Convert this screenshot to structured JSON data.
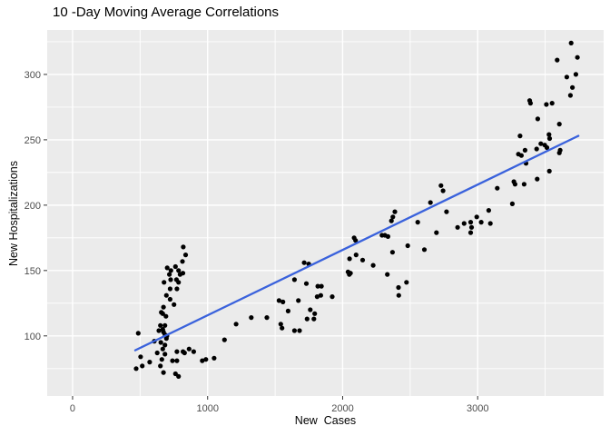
{
  "chart_data": {
    "type": "scatter",
    "title": "10 -Day Moving Average Correlations",
    "xlabel": "New  Cases",
    "ylabel": "New Hospitalizations",
    "x_ticks": [
      0,
      1000,
      2000,
      3000
    ],
    "y_ticks": [
      100,
      150,
      200,
      250,
      300
    ],
    "x_minor_ticks": [
      500,
      1500,
      2500,
      3500
    ],
    "y_minor_ticks": [
      75,
      125,
      175,
      225,
      275,
      325
    ],
    "xlim": [
      -188,
      3933
    ],
    "ylim": [
      54,
      334
    ],
    "grid": true,
    "legend_position": "none",
    "colors": {
      "panel_bg": "#EBEBEB",
      "grid": "#FFFFFF",
      "point": "#000000",
      "line": "#3A62DC",
      "axis_text": "#4D4D4D",
      "tick_mark": "#333333"
    },
    "trend_line": {
      "type": "linear",
      "x1": 464,
      "y1": 89,
      "x2": 3746,
      "y2": 253
    },
    "points": [
      [
        820,
        168
      ],
      [
        837,
        162
      ],
      [
        814,
        157
      ],
      [
        762,
        153
      ],
      [
        701,
        152
      ],
      [
        785,
        150
      ],
      [
        728,
        150
      ],
      [
        817,
        148
      ],
      [
        796,
        147
      ],
      [
        717,
        147
      ],
      [
        769,
        143
      ],
      [
        726,
        143
      ],
      [
        677,
        141
      ],
      [
        785,
        141
      ],
      [
        722,
        136
      ],
      [
        773,
        136
      ],
      [
        695,
        131
      ],
      [
        722,
        128
      ],
      [
        751,
        124
      ],
      [
        673,
        122
      ],
      [
        657,
        118
      ],
      [
        668,
        117
      ],
      [
        691,
        115
      ],
      [
        650,
        108
      ],
      [
        684,
        108
      ],
      [
        639,
        104
      ],
      [
        668,
        105
      ],
      [
        673,
        103
      ],
      [
        684,
        101
      ],
      [
        699,
        100
      ],
      [
        486,
        102
      ],
      [
        605,
        96
      ],
      [
        695,
        98
      ],
      [
        654,
        95
      ],
      [
        684,
        93
      ],
      [
        627,
        87
      ],
      [
        668,
        90
      ],
      [
        684,
        86
      ],
      [
        773,
        88
      ],
      [
        829,
        87
      ],
      [
        863,
        90
      ],
      [
        504,
        84
      ],
      [
        571,
        80
      ],
      [
        661,
        82
      ],
      [
        740,
        81
      ],
      [
        773,
        81
      ],
      [
        650,
        77
      ],
      [
        673,
        72
      ],
      [
        762,
        71
      ],
      [
        785,
        69
      ],
      [
        960,
        81
      ],
      [
        987,
        82
      ],
      [
        1048,
        83
      ],
      [
        471,
        75
      ],
      [
        516,
        77
      ],
      [
        897,
        88
      ],
      [
        818,
        88
      ],
      [
        1125,
        97
      ],
      [
        1211,
        109
      ],
      [
        1323,
        114
      ],
      [
        1439,
        114
      ],
      [
        1529,
        127
      ],
      [
        1558,
        126
      ],
      [
        1596,
        119
      ],
      [
        1542,
        109
      ],
      [
        1551,
        106
      ],
      [
        1643,
        104
      ],
      [
        1681,
        104
      ],
      [
        1672,
        127
      ],
      [
        1715,
        156
      ],
      [
        1749,
        155
      ],
      [
        1643,
        143
      ],
      [
        1731,
        140
      ],
      [
        1816,
        138
      ],
      [
        1843,
        138
      ],
      [
        1811,
        130
      ],
      [
        1838,
        131
      ],
      [
        1923,
        130
      ],
      [
        1760,
        120
      ],
      [
        1793,
        117
      ],
      [
        1787,
        113
      ],
      [
        1737,
        113
      ],
      [
        2040,
        149
      ],
      [
        2049,
        147
      ],
      [
        2058,
        148
      ],
      [
        2051,
        159
      ],
      [
        2085,
        175
      ],
      [
        2096,
        173
      ],
      [
        2100,
        162
      ],
      [
        2148,
        158
      ],
      [
        2226,
        154
      ],
      [
        2291,
        177
      ],
      [
        2313,
        177
      ],
      [
        2336,
        176
      ],
      [
        2331,
        147
      ],
      [
        2361,
        188
      ],
      [
        2369,
        164
      ],
      [
        2372,
        191
      ],
      [
        2387,
        195
      ],
      [
        2414,
        137
      ],
      [
        2416,
        131
      ],
      [
        2473,
        141
      ],
      [
        2482,
        169
      ],
      [
        2556,
        187
      ],
      [
        2605,
        166
      ],
      [
        2650,
        202
      ],
      [
        2695,
        179
      ],
      [
        2728,
        215
      ],
      [
        2744,
        211
      ],
      [
        2769,
        195
      ],
      [
        2851,
        183
      ],
      [
        2900,
        186
      ],
      [
        2948,
        187
      ],
      [
        2955,
        183
      ],
      [
        2948,
        179
      ],
      [
        2993,
        191
      ],
      [
        3026,
        187
      ],
      [
        3082,
        196
      ],
      [
        3094,
        186
      ],
      [
        3145,
        213
      ],
      [
        3257,
        201
      ],
      [
        3268,
        218
      ],
      [
        3277,
        216
      ],
      [
        3344,
        216
      ],
      [
        3441,
        220
      ],
      [
        3302,
        239
      ],
      [
        3314,
        253
      ],
      [
        3324,
        238
      ],
      [
        3351,
        242
      ],
      [
        3358,
        232
      ],
      [
        3385,
        280
      ],
      [
        3391,
        278
      ],
      [
        3437,
        243
      ],
      [
        3445,
        266
      ],
      [
        3468,
        247
      ],
      [
        3497,
        246
      ],
      [
        3509,
        277
      ],
      [
        3513,
        244
      ],
      [
        3528,
        254
      ],
      [
        3533,
        251
      ],
      [
        3551,
        278
      ],
      [
        3589,
        311
      ],
      [
        3605,
        262
      ],
      [
        3605,
        240
      ],
      [
        3611,
        242
      ],
      [
        3660,
        298
      ],
      [
        3687,
        284
      ],
      [
        3692,
        324
      ],
      [
        3702,
        290
      ],
      [
        3727,
        300
      ],
      [
        3739,
        313
      ],
      [
        3531,
        226
      ]
    ]
  }
}
